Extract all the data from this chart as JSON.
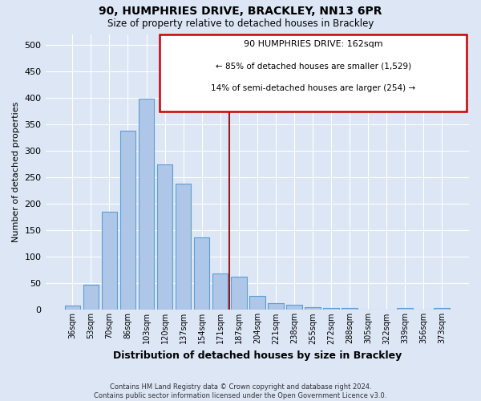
{
  "title": "90, HUMPHRIES DRIVE, BRACKLEY, NN13 6PR",
  "subtitle": "Size of property relative to detached houses in Brackley",
  "xlabel": "Distribution of detached houses by size in Brackley",
  "ylabel": "Number of detached properties",
  "categories": [
    "36sqm",
    "53sqm",
    "70sqm",
    "86sqm",
    "103sqm",
    "120sqm",
    "137sqm",
    "154sqm",
    "171sqm",
    "187sqm",
    "204sqm",
    "221sqm",
    "238sqm",
    "255sqm",
    "272sqm",
    "288sqm",
    "305sqm",
    "322sqm",
    "339sqm",
    "356sqm",
    "373sqm"
  ],
  "values": [
    8,
    47,
    185,
    338,
    398,
    275,
    238,
    136,
    69,
    63,
    26,
    13,
    9,
    5,
    4,
    4,
    0,
    0,
    4,
    0,
    4
  ],
  "bar_color": "#aec6e8",
  "bar_edge_color": "#5a9fd4",
  "background_color": "#dce6f5",
  "grid_color": "#ffffff",
  "vline_x": 8.5,
  "vline_color": "#9b1c1c",
  "annotation_title": "90 HUMPHRIES DRIVE: 162sqm",
  "annotation_line1": "← 85% of detached houses are smaller (1,529)",
  "annotation_line2": "14% of semi-detached houses are larger (254) →",
  "annotation_box_edge": "#cc0000",
  "ylim": [
    0,
    520
  ],
  "yticks": [
    0,
    50,
    100,
    150,
    200,
    250,
    300,
    350,
    400,
    450,
    500
  ],
  "footer": "Contains HM Land Registry data © Crown copyright and database right 2024.\nContains public sector information licensed under the Open Government Licence v3.0."
}
